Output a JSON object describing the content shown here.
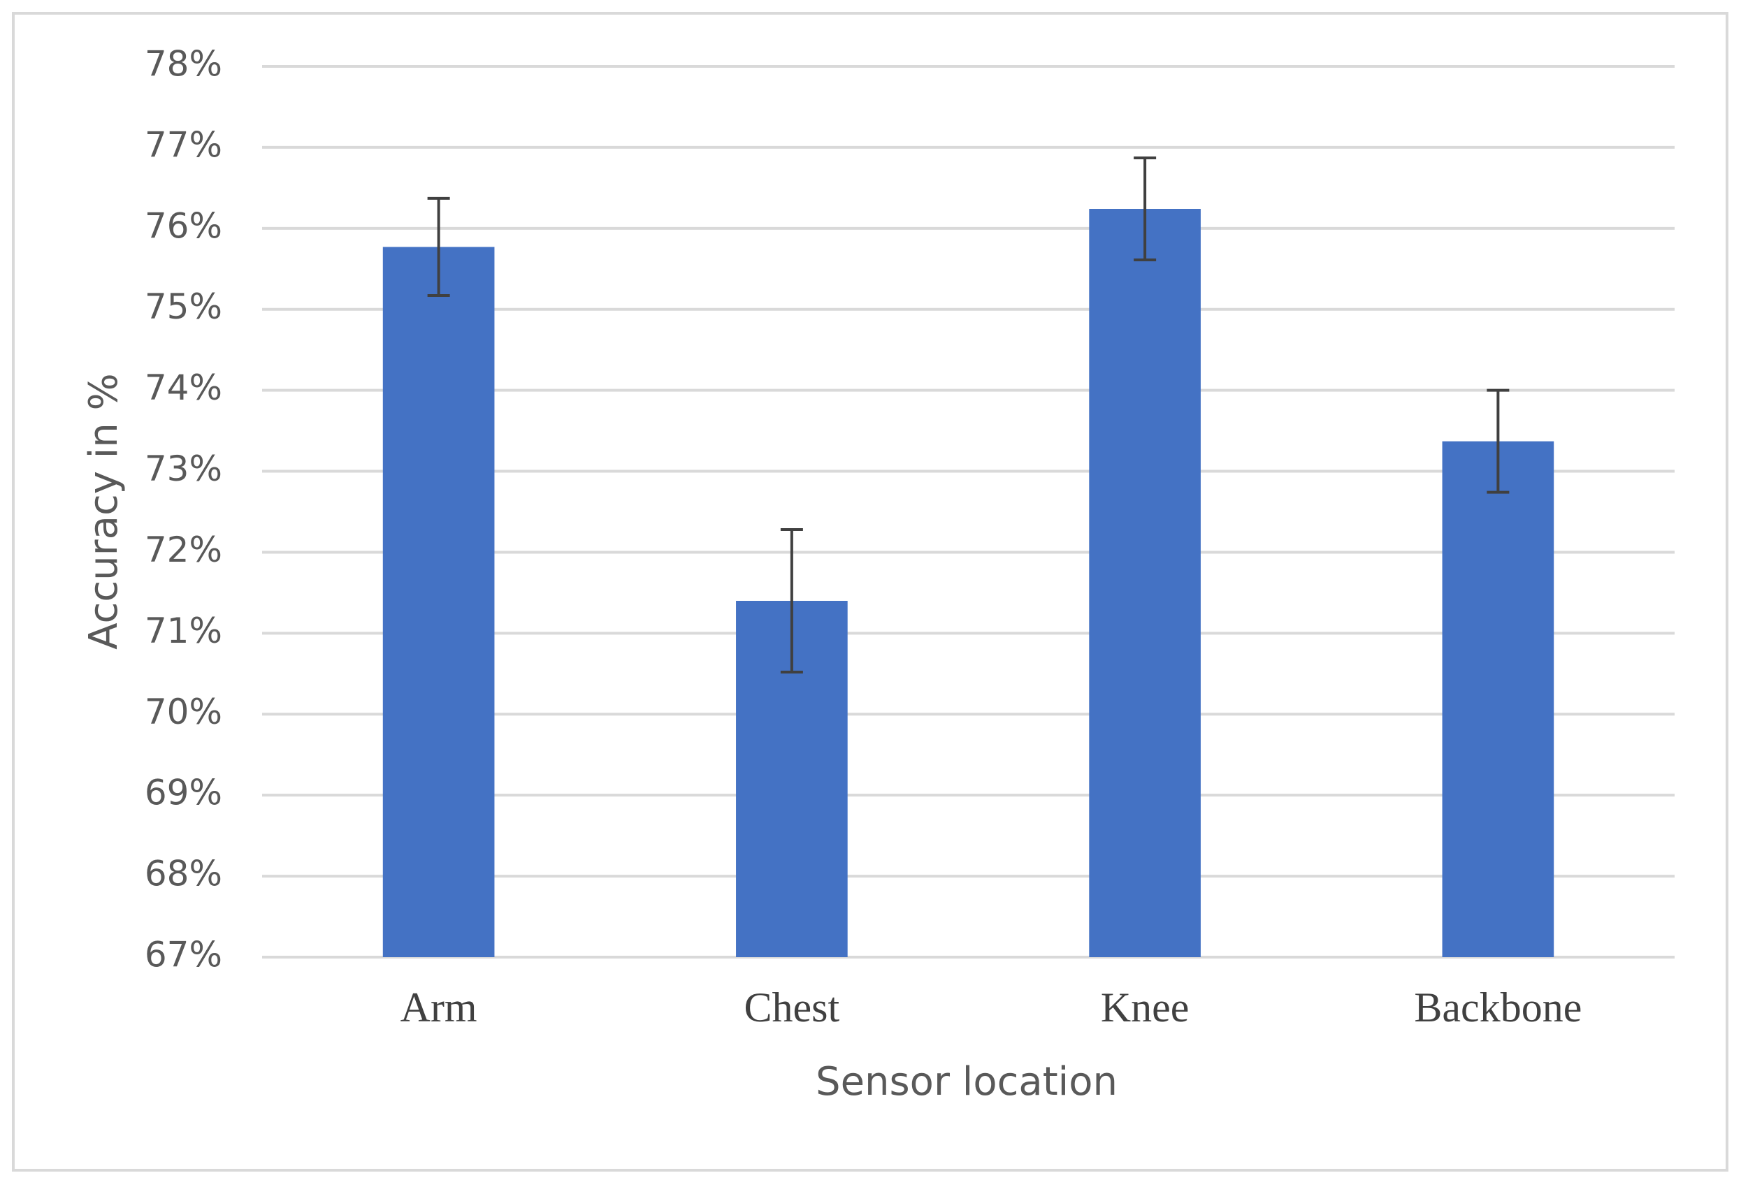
{
  "chart_data": {
    "type": "bar",
    "x_label": "Sensor location",
    "y_label": "Accuracy in %",
    "categories": [
      "Arm",
      "Chest",
      "Knee",
      "Backbone"
    ],
    "values": [
      75.77,
      71.4,
      76.24,
      73.37
    ],
    "errors": [
      0.6,
      0.88,
      0.63,
      0.63
    ],
    "color": "#4472c4",
    "error_color": "#404040",
    "ylim": [
      67,
      78
    ],
    "yticks": [
      {
        "value": 67,
        "label": "67%"
      },
      {
        "value": 68,
        "label": "68%"
      },
      {
        "value": 69,
        "label": "69%"
      },
      {
        "value": 70,
        "label": "70%"
      },
      {
        "value": 71,
        "label": "71%"
      },
      {
        "value": 72,
        "label": "72%"
      },
      {
        "value": 73,
        "label": "73%"
      },
      {
        "value": 74,
        "label": "74%"
      },
      {
        "value": 75,
        "label": "75%"
      },
      {
        "value": 76,
        "label": "76%"
      },
      {
        "value": 77,
        "label": "77%"
      },
      {
        "value": 78,
        "label": "78%"
      }
    ],
    "grid": true
  }
}
